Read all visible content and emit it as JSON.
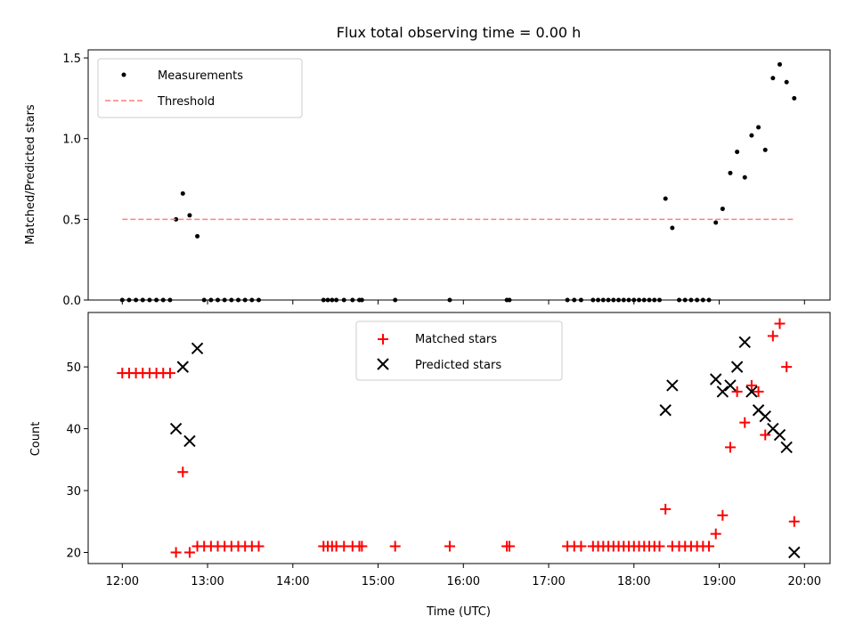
{
  "figure": {
    "title": "Flux total observing time = 0.00 h"
  },
  "chart_data": [
    {
      "type": "scatter",
      "ylabel": "Matched/Predicted stars",
      "xlabel": "",
      "xlim": [
        11.6,
        20.3
      ],
      "ylim": [
        0,
        1.55
      ],
      "yticks": [
        0.0,
        0.5,
        1.0,
        1.5
      ],
      "ytick_labels": [
        "0.0",
        "0.5",
        "1.0",
        "1.5"
      ],
      "legend": {
        "placement": "top-left",
        "entries": [
          "Measurements",
          "Threshold"
        ]
      },
      "series": [
        {
          "name": "Measurements",
          "marker": "dot",
          "color": "#000000",
          "x": [
            12.0,
            12.08,
            12.16,
            12.24,
            12.32,
            12.4,
            12.48,
            12.56,
            12.63,
            12.71,
            12.79,
            12.88,
            12.96,
            13.04,
            13.12,
            13.2,
            13.28,
            13.36,
            13.44,
            13.52,
            13.6,
            14.36,
            14.41,
            14.46,
            14.51,
            14.6,
            14.7,
            14.78,
            14.81,
            15.2,
            15.84,
            16.51,
            16.54,
            17.22,
            17.3,
            17.38,
            17.52,
            17.58,
            17.64,
            17.7,
            17.76,
            17.82,
            17.88,
            17.94,
            18.0,
            18.06,
            18.12,
            18.18,
            18.24,
            18.3,
            18.37,
            18.45,
            18.53,
            18.6,
            18.67,
            18.74,
            18.81,
            18.88,
            18.96,
            19.04,
            19.13,
            19.21,
            19.3,
            19.38,
            19.46,
            19.54,
            19.63,
            19.71,
            19.79,
            19.88
          ],
          "y": [
            0,
            0,
            0,
            0,
            0,
            0,
            0,
            0,
            0.5,
            0.66,
            0.525,
            0.395,
            0,
            0,
            0,
            0,
            0,
            0,
            0,
            0,
            0,
            0,
            0,
            0,
            0,
            0,
            0,
            0,
            0,
            0,
            0,
            0,
            0,
            0,
            0,
            0,
            0,
            0,
            0,
            0,
            0,
            0,
            0,
            0,
            0,
            0,
            0,
            0,
            0,
            0,
            0.628,
            0.447,
            0,
            0,
            0,
            0,
            0,
            0,
            0.48,
            0.565,
            0.787,
            0.918,
            0.76,
            1.02,
            1.07,
            0.93,
            1.375,
            1.46,
            1.35,
            1.25
          ]
        },
        {
          "name": "Threshold",
          "line": "dashed",
          "color": "#ff7f7f",
          "x": [
            12.0,
            19.88
          ],
          "y": [
            0.5,
            0.5
          ]
        }
      ]
    },
    {
      "type": "scatter",
      "ylabel": "Count",
      "xlabel": "Time (UTC)",
      "xlim": [
        11.6,
        20.3
      ],
      "ylim": [
        18.2,
        58.8
      ],
      "yticks": [
        20,
        30,
        40,
        50
      ],
      "ytick_labels": [
        "20",
        "30",
        "40",
        "50"
      ],
      "xticks": [
        12,
        13,
        14,
        15,
        16,
        17,
        18,
        19,
        20
      ],
      "xtick_labels": [
        "12:00",
        "13:00",
        "14:00",
        "15:00",
        "16:00",
        "17:00",
        "18:00",
        "19:00",
        "20:00"
      ],
      "legend": {
        "placement": "top-center",
        "entries": [
          "Matched stars",
          "Predicted stars"
        ]
      },
      "series": [
        {
          "name": "Matched stars",
          "marker": "plus",
          "color": "#ff0000",
          "x": [
            12.0,
            12.08,
            12.16,
            12.24,
            12.32,
            12.4,
            12.48,
            12.56,
            12.63,
            12.71,
            12.79,
            12.88,
            12.96,
            13.04,
            13.12,
            13.2,
            13.28,
            13.36,
            13.44,
            13.52,
            13.6,
            14.36,
            14.41,
            14.46,
            14.51,
            14.6,
            14.7,
            14.78,
            14.81,
            15.2,
            15.84,
            16.51,
            16.54,
            17.22,
            17.3,
            17.38,
            17.52,
            17.58,
            17.64,
            17.7,
            17.76,
            17.82,
            17.88,
            17.94,
            18.0,
            18.06,
            18.12,
            18.18,
            18.24,
            18.3,
            18.37,
            18.45,
            18.53,
            18.6,
            18.67,
            18.74,
            18.81,
            18.88,
            18.96,
            19.04,
            19.13,
            19.21,
            19.3,
            19.38,
            19.46,
            19.54,
            19.63,
            19.71,
            19.79,
            19.88
          ],
          "y": [
            49,
            49,
            49,
            49,
            49,
            49,
            49,
            49,
            20,
            33,
            20,
            21,
            21,
            21,
            21,
            21,
            21,
            21,
            21,
            21,
            21,
            21,
            21,
            21,
            21,
            21,
            21,
            21,
            21,
            21,
            21,
            21,
            21,
            21,
            21,
            21,
            21,
            21,
            21,
            21,
            21,
            21,
            21,
            21,
            21,
            21,
            21,
            21,
            21,
            21,
            27,
            21,
            21,
            21,
            21,
            21,
            21,
            21,
            23,
            26,
            37,
            46,
            41,
            47,
            46,
            39,
            55,
            57,
            50,
            25
          ]
        },
        {
          "name": "Predicted stars",
          "marker": "x",
          "color": "#000000",
          "x": [
            12.63,
            12.71,
            12.79,
            12.88,
            18.37,
            18.45,
            18.96,
            19.04,
            19.13,
            19.21,
            19.3,
            19.38,
            19.46,
            19.54,
            19.63,
            19.71,
            19.79,
            19.88
          ],
          "y": [
            40,
            50,
            38,
            53,
            43,
            47,
            48,
            46,
            47,
            50,
            54,
            46,
            43,
            42,
            40,
            39,
            37,
            20
          ]
        }
      ]
    }
  ]
}
